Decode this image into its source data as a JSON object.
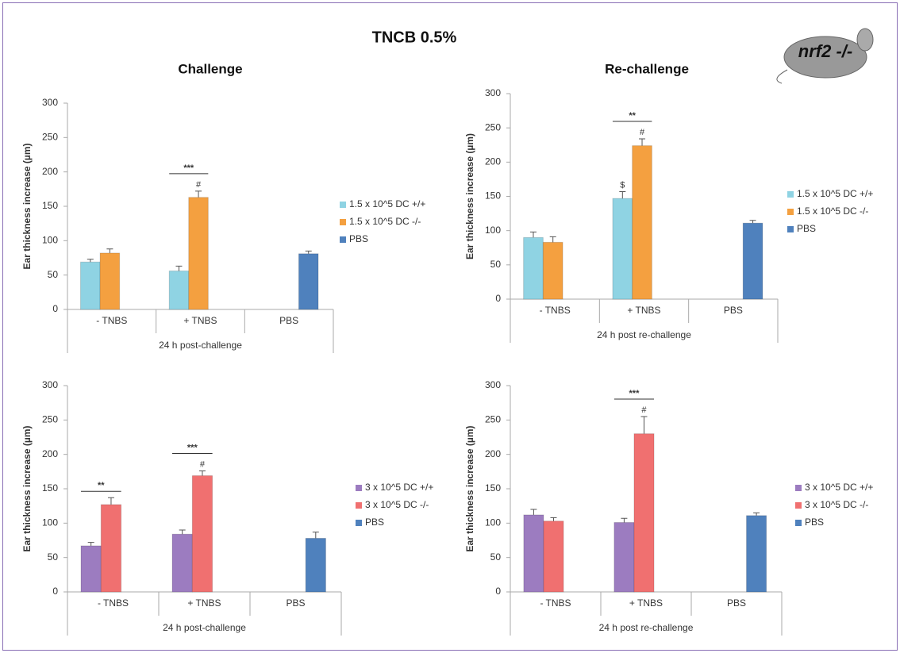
{
  "title": "TNCB 0.5%",
  "badge": "nrf2 -/-",
  "chart_data": [
    {
      "type": "bar",
      "title": "Challenge",
      "y_label": "Ear thickness increase (µm)",
      "x_group_label": "24 h post-challenge",
      "categories": [
        "- TNBS",
        "+ TNBS",
        "PBS"
      ],
      "ylim": [
        0,
        300
      ],
      "yticks": [
        0,
        50,
        100,
        150,
        200,
        250,
        300
      ],
      "brackets": [
        null,
        "***",
        null
      ],
      "series": [
        {
          "name": "1.5 x 10^5 DC +/+",
          "color": "#8fd3e3",
          "values": [
            69,
            56,
            null
          ],
          "errors": [
            4,
            7,
            null
          ],
          "markers": [
            null,
            null,
            null
          ]
        },
        {
          "name": "1.5 x 10^5 DC -/-",
          "color": "#f4a040",
          "values": [
            82,
            163,
            null
          ],
          "errors": [
            6,
            9,
            null
          ],
          "markers": [
            null,
            "#",
            null
          ]
        },
        {
          "name": "PBS",
          "color": "#4f81bd",
          "values": [
            null,
            null,
            81
          ],
          "errors": [
            null,
            null,
            4
          ],
          "markers": [
            null,
            null,
            null
          ]
        }
      ]
    },
    {
      "type": "bar",
      "title": "Re-challenge",
      "y_label": "Ear thickness increase (µm)",
      "x_group_label": "24 h post re-challenge",
      "categories": [
        "- TNBS",
        "+ TNBS",
        "PBS"
      ],
      "ylim": [
        0,
        300
      ],
      "yticks": [
        0,
        50,
        100,
        150,
        200,
        250,
        300
      ],
      "brackets": [
        null,
        "**",
        null
      ],
      "series": [
        {
          "name": "1.5 x 10^5 DC +/+",
          "color": "#8fd3e3",
          "values": [
            90,
            147,
            null
          ],
          "errors": [
            8,
            10,
            null
          ],
          "markers": [
            null,
            "$",
            null
          ]
        },
        {
          "name": "1.5 x 10^5 DC -/-",
          "color": "#f4a040",
          "values": [
            83,
            224,
            null
          ],
          "errors": [
            8,
            10,
            null
          ],
          "markers": [
            null,
            "#",
            null
          ]
        },
        {
          "name": "PBS",
          "color": "#4f81bd",
          "values": [
            null,
            null,
            111
          ],
          "errors": [
            null,
            null,
            4
          ],
          "markers": [
            null,
            null,
            null
          ]
        }
      ]
    },
    {
      "type": "bar",
      "y_label": "Ear thickness increase (µm)",
      "x_group_label": "24 h post-challenge",
      "categories": [
        "- TNBS",
        "+ TNBS",
        "PBS"
      ],
      "ylim": [
        0,
        300
      ],
      "yticks": [
        0,
        50,
        100,
        150,
        200,
        250,
        300
      ],
      "brackets": [
        "**",
        "***",
        null
      ],
      "series": [
        {
          "name": "3 x 10^5 DC +/+",
          "color": "#9c7cc0",
          "values": [
            67,
            84,
            null
          ],
          "errors": [
            5,
            6,
            null
          ],
          "markers": [
            null,
            null,
            null
          ]
        },
        {
          "name": "3 x 10^5 DC -/-",
          "color": "#f07070",
          "values": [
            127,
            169,
            null
          ],
          "errors": [
            10,
            7,
            null
          ],
          "markers": [
            null,
            "#",
            null
          ]
        },
        {
          "name": "PBS",
          "color": "#4f81bd",
          "values": [
            null,
            null,
            78
          ],
          "errors": [
            null,
            null,
            9
          ],
          "markers": [
            null,
            null,
            null
          ]
        }
      ]
    },
    {
      "type": "bar",
      "y_label": "Ear thickness increase (µm)",
      "x_group_label": "24 h post re-challenge",
      "categories": [
        "- TNBS",
        "+ TNBS",
        "PBS"
      ],
      "ylim": [
        0,
        300
      ],
      "yticks": [
        0,
        50,
        100,
        150,
        200,
        250,
        300
      ],
      "brackets": [
        null,
        "***",
        null
      ],
      "series": [
        {
          "name": "3 x 10^5 DC +/+",
          "color": "#9c7cc0",
          "values": [
            112,
            101,
            null
          ],
          "errors": [
            8,
            6,
            null
          ],
          "markers": [
            null,
            null,
            null
          ]
        },
        {
          "name": "3 x 10^5 DC -/-",
          "color": "#f07070",
          "values": [
            103,
            230,
            null
          ],
          "errors": [
            5,
            25,
            null
          ],
          "markers": [
            null,
            "#",
            null
          ]
        },
        {
          "name": "PBS",
          "color": "#4f81bd",
          "values": [
            null,
            null,
            111
          ],
          "errors": [
            null,
            null,
            4
          ],
          "markers": [
            null,
            null,
            null
          ]
        }
      ]
    }
  ]
}
